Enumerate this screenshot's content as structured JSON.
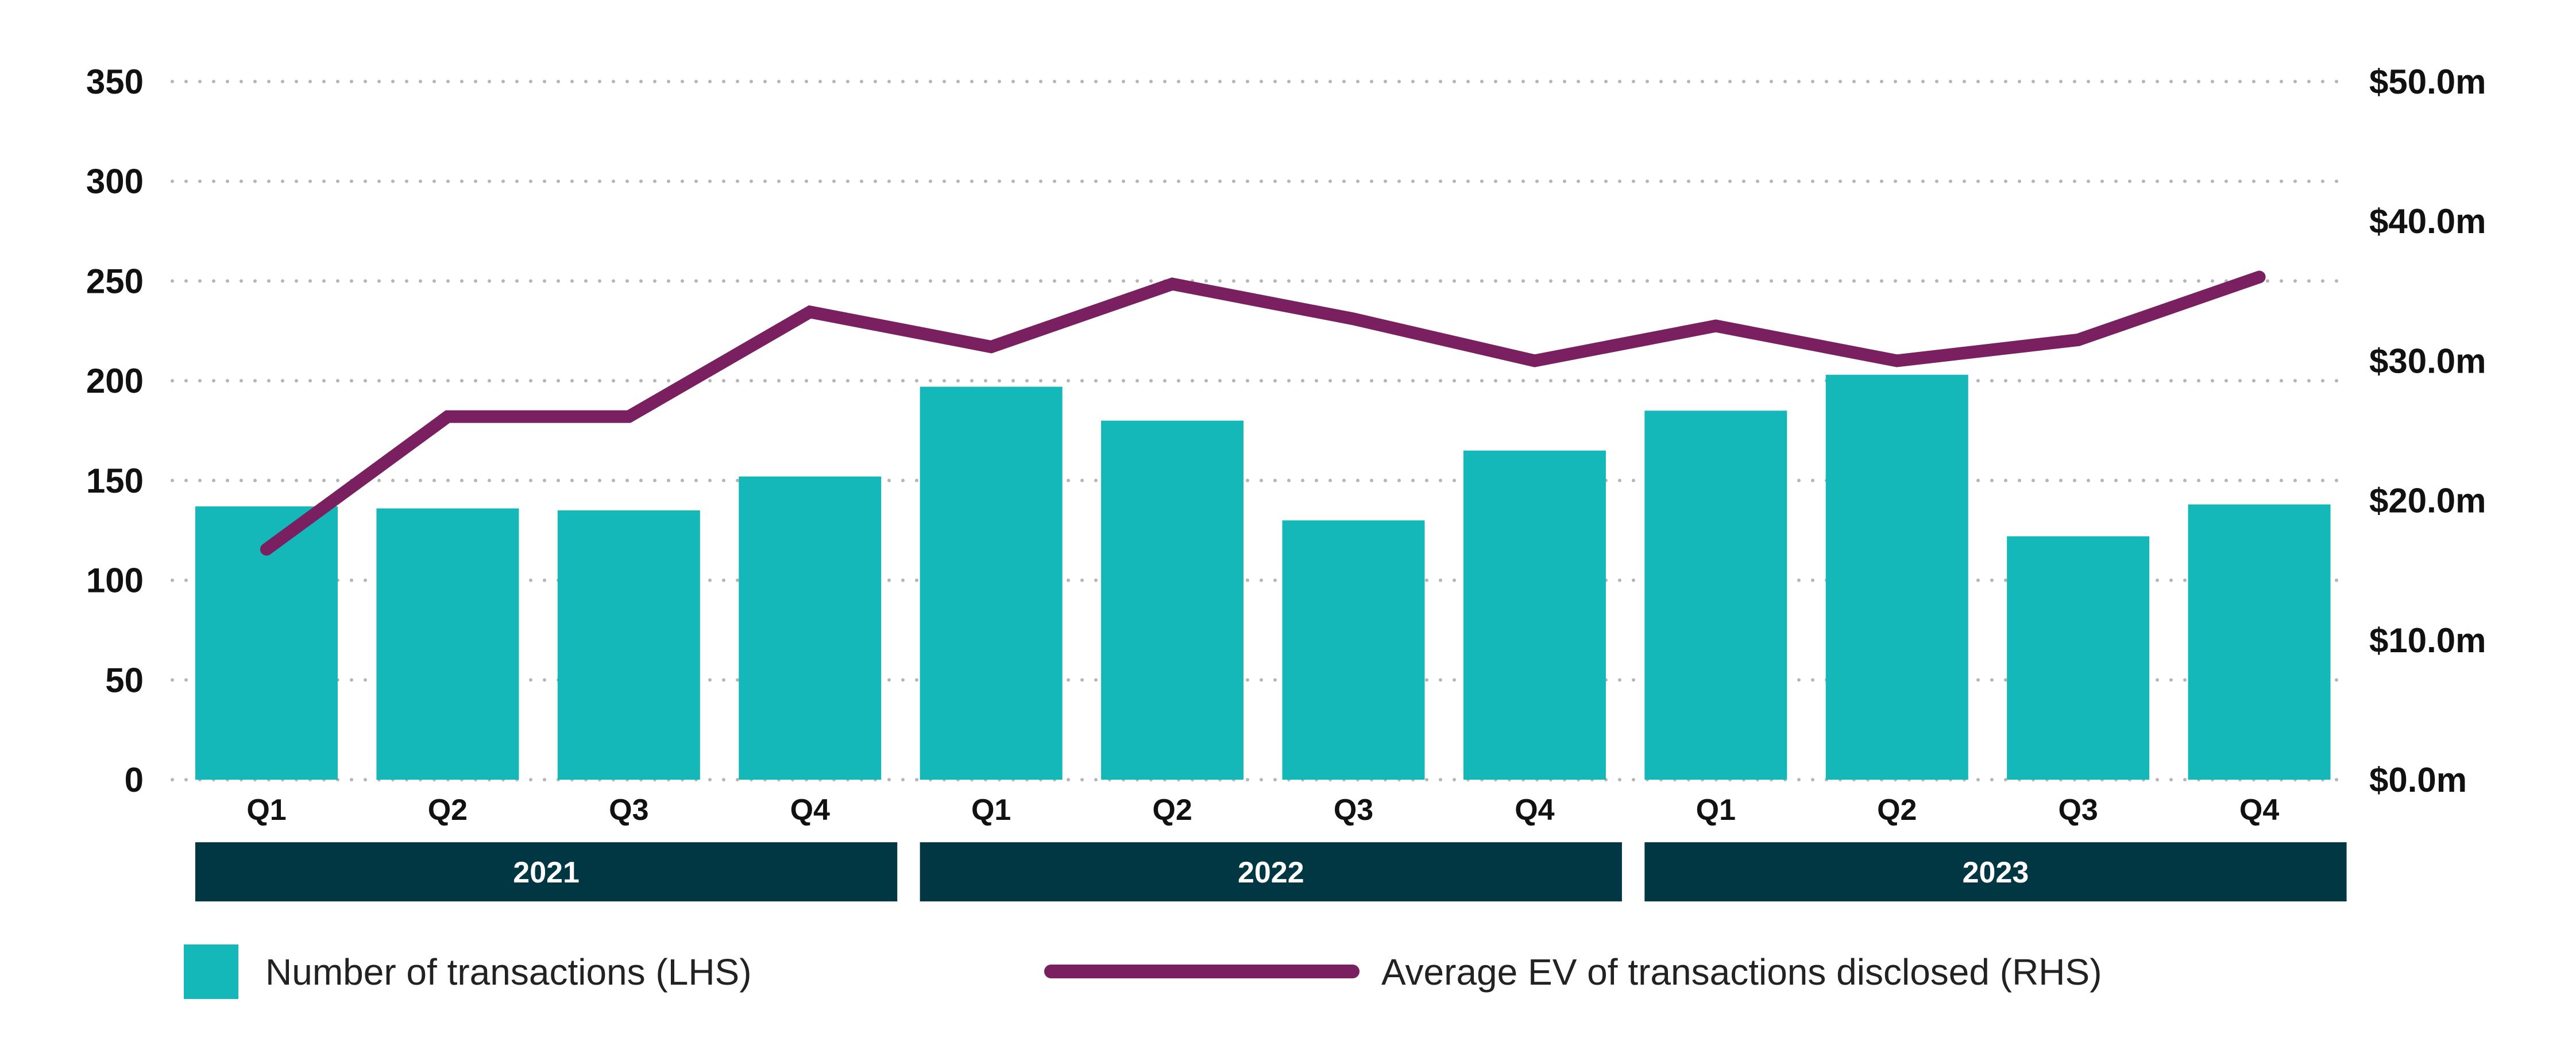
{
  "colors": {
    "bar": "#14B8B8",
    "line": "#7A1F5F",
    "year_band": "#003743",
    "grid": "#B5B5B5",
    "text": "#111111"
  },
  "chart_data": {
    "type": "bar",
    "title": "",
    "left_axis": {
      "ylim": [
        0,
        350
      ],
      "ticks": [
        "0",
        "50",
        "100",
        "150",
        "200",
        "250",
        "300",
        "350"
      ]
    },
    "right_axis": {
      "ylim": [
        0,
        50
      ],
      "ticks": [
        "$0.0m",
        "$10.0m",
        "$20.0m",
        "$30.0m",
        "$40.0m",
        "$50.0m"
      ]
    },
    "categories": [
      "Q1",
      "Q2",
      "Q3",
      "Q4",
      "Q1",
      "Q2",
      "Q3",
      "Q4",
      "Q1",
      "Q2",
      "Q3",
      "Q4"
    ],
    "groups": [
      {
        "label": "2021",
        "span": [
          0,
          3
        ]
      },
      {
        "label": "2022",
        "span": [
          4,
          7
        ]
      },
      {
        "label": "2023",
        "span": [
          8,
          11
        ]
      }
    ],
    "grid": "dotted-horizontal",
    "legend_position": "bottom",
    "series": [
      {
        "name": "Number of transactions (LHS)",
        "type": "bar",
        "axis": "left",
        "values": [
          137,
          136,
          135,
          152,
          197,
          180,
          130,
          165,
          185,
          203,
          122,
          138
        ]
      },
      {
        "name": "Average EV of transactions disclosed (RHS)",
        "type": "line",
        "axis": "right",
        "values": [
          16.5,
          26,
          26,
          33.5,
          31,
          35.5,
          33,
          30,
          32.5,
          30,
          31.5,
          36
        ]
      }
    ]
  }
}
